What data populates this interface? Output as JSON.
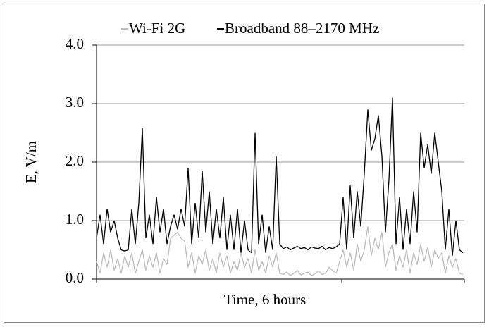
{
  "chart_data": {
    "type": "line",
    "y_label": "E, V/m",
    "x_label": "Time, 6 hours",
    "ylim": [
      0,
      4
    ],
    "yticks": [
      {
        "value": 0,
        "label": "0.0"
      },
      {
        "value": 1,
        "label": "1.0"
      },
      {
        "value": 2,
        "label": "2.0"
      },
      {
        "value": 3,
        "label": "3.0"
      },
      {
        "value": 4,
        "label": "4.0"
      }
    ],
    "grid": true,
    "legend": "top",
    "series": [
      {
        "name": "Wi-Fi 2G",
        "color": "#bdbdbd",
        "values": [
          0.3,
          0.1,
          0.45,
          0.2,
          0.5,
          0.15,
          0.35,
          0.1,
          0.4,
          0.2,
          0.45,
          0.1,
          0.3,
          0.5,
          0.15,
          0.4,
          0.2,
          0.45,
          0.1,
          0.35,
          0.25,
          0.7,
          0.75,
          0.8,
          0.7,
          0.65,
          0.2,
          0.45,
          0.1,
          0.4,
          0.25,
          0.5,
          0.15,
          0.35,
          0.1,
          0.45,
          0.2,
          0.4,
          0.1,
          0.3,
          0.15,
          0.45,
          0.2,
          0.35,
          0.1,
          0.5,
          0.15,
          0.3,
          0.1,
          0.4,
          0.2,
          0.45,
          0.1,
          0.08,
          0.12,
          0.06,
          0.1,
          0.15,
          0.07,
          0.1,
          0.12,
          0.06,
          0.09,
          0.14,
          0.08,
          0.1,
          0.2,
          0.15,
          0.1,
          0.3,
          0.5,
          0.2,
          0.45,
          0.15,
          0.6,
          0.3,
          0.5,
          0.9,
          0.4,
          0.7,
          0.5,
          0.8,
          0.2,
          0.45,
          0.6,
          0.15,
          0.4,
          0.2,
          0.5,
          0.1,
          0.45,
          0.25,
          0.6,
          0.3,
          0.55,
          0.2,
          0.5,
          0.35,
          0.45,
          0.1,
          0.4,
          0.2,
          0.35,
          0.1,
          0.08
        ]
      },
      {
        "name": "Broadband 88–2170 MHz",
        "color": "#000000",
        "values": [
          0.7,
          1.1,
          0.6,
          1.2,
          0.8,
          1.0,
          0.7,
          0.5,
          0.48,
          0.5,
          1.2,
          0.6,
          1.3,
          2.58,
          0.7,
          1.1,
          0.6,
          1.4,
          0.8,
          1.2,
          0.6,
          0.9,
          1.1,
          0.85,
          1.2,
          0.9,
          1.9,
          0.6,
          1.3,
          0.7,
          1.85,
          0.8,
          1.5,
          0.6,
          1.2,
          0.7,
          1.4,
          0.5,
          1.1,
          0.5,
          1.2,
          0.45,
          1.0,
          0.5,
          0.45,
          2.5,
          0.6,
          1.1,
          0.45,
          0.9,
          0.5,
          2.1,
          0.6,
          0.52,
          0.55,
          0.5,
          0.53,
          0.56,
          0.52,
          0.54,
          0.5,
          0.55,
          0.53,
          0.52,
          0.56,
          0.5,
          0.54,
          0.52,
          0.55,
          0.6,
          1.4,
          0.5,
          1.6,
          0.7,
          1.5,
          0.9,
          1.8,
          2.9,
          2.2,
          2.4,
          2.8,
          2.1,
          0.8,
          1.7,
          3.1,
          0.6,
          1.4,
          0.5,
          1.2,
          0.6,
          1.5,
          0.8,
          2.5,
          1.9,
          2.3,
          1.8,
          2.5,
          2.0,
          1.5,
          0.5,
          1.2,
          0.4,
          1.0,
          0.5,
          0.45
        ]
      }
    ]
  }
}
